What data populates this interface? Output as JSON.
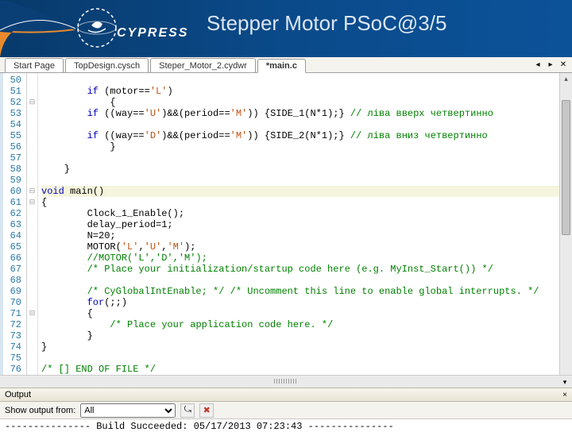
{
  "header": {
    "brand": "CYPRESS",
    "title": "Stepper Motor PSoC@3/5"
  },
  "tabs": {
    "items": [
      {
        "label": "Start Page"
      },
      {
        "label": "TopDesign.cysch"
      },
      {
        "label": "Steper_Motor_2.cydwr"
      },
      {
        "label": "*main.c"
      }
    ],
    "active": 3,
    "nav_left": "◂",
    "nav_right": "▸",
    "nav_close": "✕"
  },
  "editor": {
    "first_line": 50,
    "lines": [
      {
        "pre": "    ",
        "tokens": []
      },
      {
        "pre": "        ",
        "tokens": [
          {
            "t": "if",
            "c": "kw"
          },
          {
            "t": " (motor=="
          },
          {
            "t": "'L'",
            "c": "ch"
          },
          {
            "t": ")"
          }
        ]
      },
      {
        "pre": "            ",
        "fold": "⊟",
        "tokens": [
          {
            "t": "{"
          }
        ]
      },
      {
        "pre": "        ",
        "tokens": [
          {
            "t": "if",
            "c": "kw"
          },
          {
            "t": " ((way=="
          },
          {
            "t": "'U'",
            "c": "ch"
          },
          {
            "t": ")&&(period=="
          },
          {
            "t": "'M'",
            "c": "ch"
          },
          {
            "t": ")) {SIDE_1(N*1);} "
          },
          {
            "t": "// ліва вверх четвертинно",
            "c": "cm"
          }
        ]
      },
      {
        "pre": "    ",
        "tokens": []
      },
      {
        "pre": "        ",
        "tokens": [
          {
            "t": "if",
            "c": "kw"
          },
          {
            "t": " ((way=="
          },
          {
            "t": "'D'",
            "c": "ch"
          },
          {
            "t": ")&&(period=="
          },
          {
            "t": "'M'",
            "c": "ch"
          },
          {
            "t": ")) {SIDE_2(N*1);} "
          },
          {
            "t": "// ліва вниз четвертинно",
            "c": "cm"
          }
        ]
      },
      {
        "pre": "            ",
        "tokens": [
          {
            "t": "}"
          }
        ]
      },
      {
        "pre": "    ",
        "tokens": []
      },
      {
        "pre": "    ",
        "tokens": [
          {
            "t": "}"
          }
        ]
      },
      {
        "pre": "",
        "tokens": []
      },
      {
        "pre": "",
        "fold": "⊟",
        "hl": true,
        "tokens": [
          {
            "t": "void",
            "c": "kw"
          },
          {
            "t": " main()"
          }
        ]
      },
      {
        "pre": "",
        "fold": "⊟",
        "tokens": [
          {
            "t": "{"
          }
        ]
      },
      {
        "pre": "        ",
        "tokens": [
          {
            "t": "Clock_1_Enable();"
          }
        ]
      },
      {
        "pre": "        ",
        "tokens": [
          {
            "t": "delay_period=1;"
          }
        ]
      },
      {
        "pre": "        ",
        "tokens": [
          {
            "t": "N=20;"
          }
        ]
      },
      {
        "pre": "        ",
        "tokens": [
          {
            "t": "MOTOR("
          },
          {
            "t": "'L'",
            "c": "ch"
          },
          {
            "t": ","
          },
          {
            "t": "'U'",
            "c": "ch"
          },
          {
            "t": ","
          },
          {
            "t": "'M'",
            "c": "ch"
          },
          {
            "t": ");"
          }
        ]
      },
      {
        "pre": "        ",
        "tokens": [
          {
            "t": "//MOTOR('L','D','M');",
            "c": "cm"
          }
        ]
      },
      {
        "pre": "        ",
        "tokens": [
          {
            "t": "/* Place your initialization/startup code here (e.g. MyInst_Start()) */",
            "c": "cm"
          }
        ]
      },
      {
        "pre": "",
        "tokens": []
      },
      {
        "pre": "        ",
        "tokens": [
          {
            "t": "/* CyGlobalIntEnable; */ /* Uncomment this line to enable global interrupts. */",
            "c": "cm"
          }
        ]
      },
      {
        "pre": "        ",
        "tokens": [
          {
            "t": "for",
            "c": "kw"
          },
          {
            "t": "(;;)"
          }
        ]
      },
      {
        "pre": "        ",
        "fold": "⊟",
        "tokens": [
          {
            "t": "{"
          }
        ]
      },
      {
        "pre": "            ",
        "tokens": [
          {
            "t": "/* Place your application code here. */",
            "c": "cm"
          }
        ]
      },
      {
        "pre": "        ",
        "tokens": [
          {
            "t": "}"
          }
        ]
      },
      {
        "pre": "",
        "tokens": [
          {
            "t": "}"
          }
        ]
      },
      {
        "pre": "",
        "tokens": []
      },
      {
        "pre": "",
        "tokens": [
          {
            "t": "/* [] END OF FILE */",
            "c": "cm"
          }
        ]
      }
    ]
  },
  "output": {
    "panel_title": "Output",
    "label": "Show output from:",
    "selected": "All",
    "clear_icon": "✖",
    "pin_icon": "▾",
    "hdr_pin": "×",
    "message": "--------------- Build Succeeded: 05/17/2013 07:23:43 ---------------"
  }
}
